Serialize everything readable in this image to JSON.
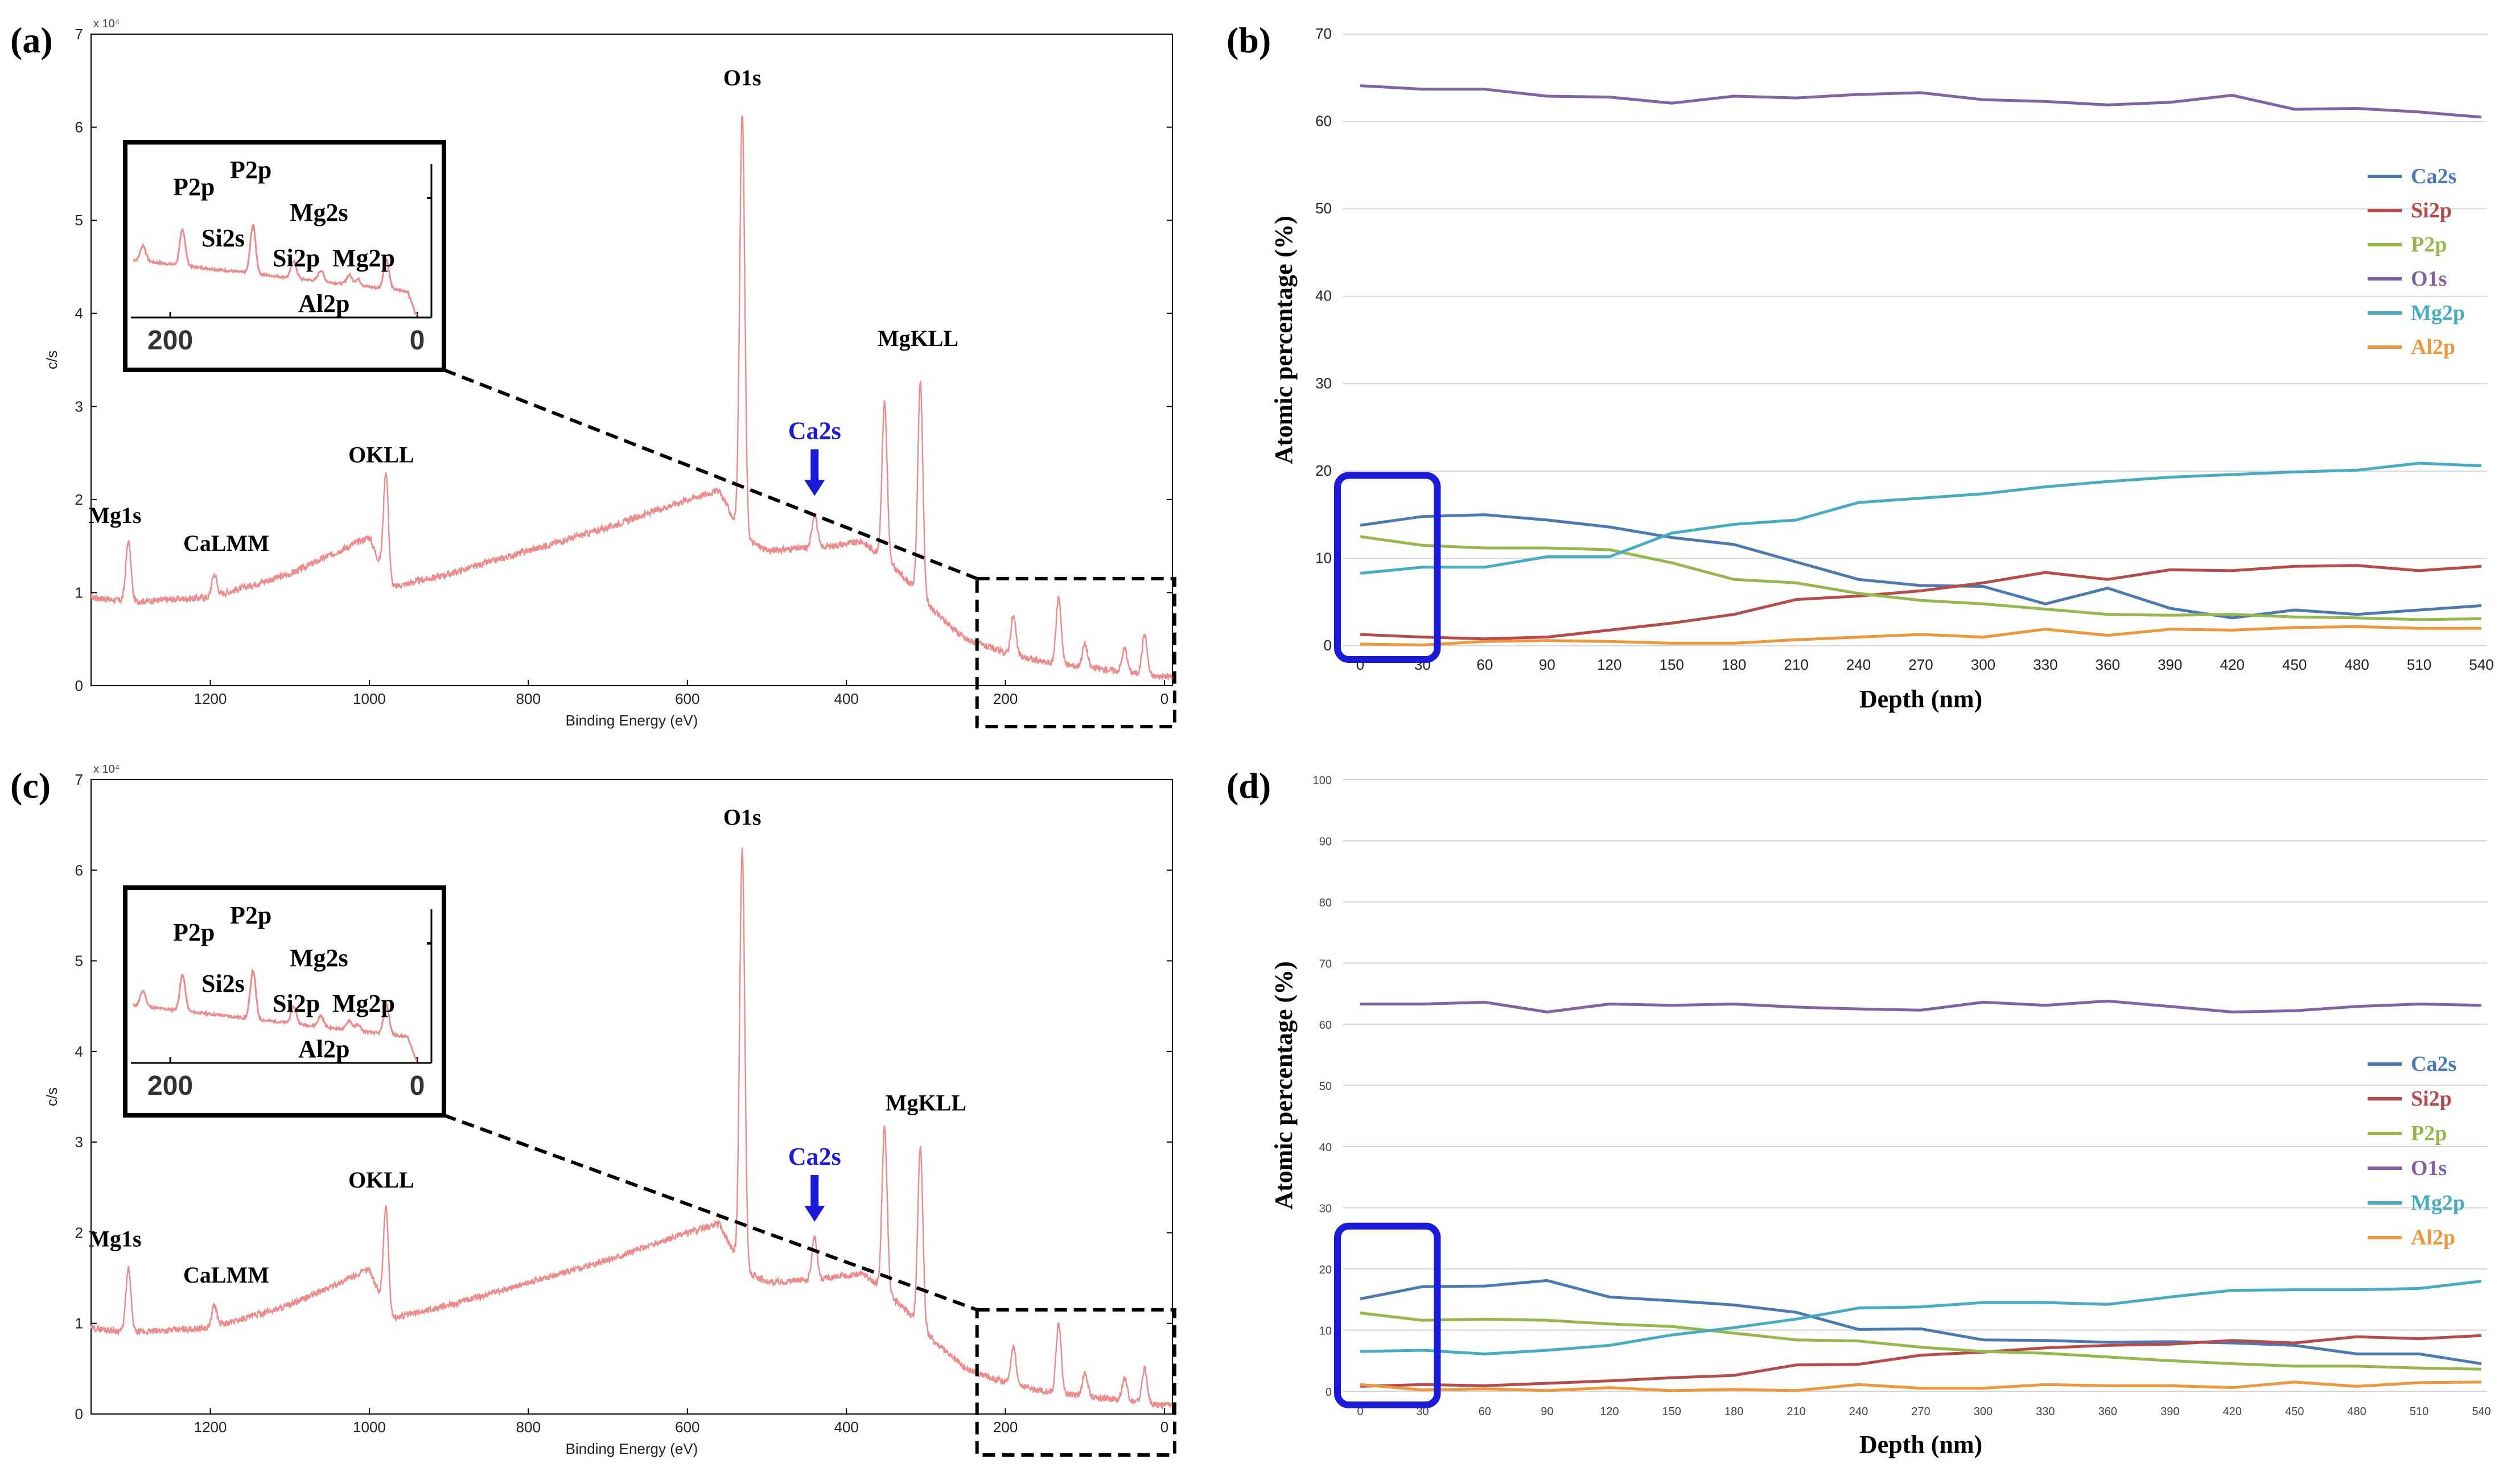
{
  "figure": {
    "panels": {
      "a": "(a)",
      "b": "(b)",
      "c": "(c)",
      "d": "(d)"
    }
  },
  "colors": {
    "spectrum": "#ef8a8a",
    "Ca2s": "#4a7ab5",
    "Si2p": "#b84a4a",
    "P2p": "#94b84a",
    "O1s": "#8062a6",
    "Mg2p": "#46acc4",
    "Al2p": "#f0973c",
    "highlight": "#1a1adb"
  },
  "chart_data": [
    {
      "id": "a",
      "type": "line",
      "title": "",
      "xlabel": "Binding Energy (eV)",
      "ylabel": "c/s",
      "y_multiplier": "x 10⁴",
      "xlim": [
        1350,
        -10
      ],
      "ylim": [
        0,
        7
      ],
      "xticks": [
        1200,
        1000,
        800,
        600,
        400,
        200,
        0
      ],
      "yticks": [
        0,
        1,
        2,
        3,
        4,
        5,
        6,
        7
      ],
      "baseline": [
        [
          1350,
          0.95
        ],
        [
          1300,
          0.9
        ],
        [
          1200,
          0.95
        ],
        [
          1100,
          1.2
        ],
        [
          1000,
          1.6
        ],
        [
          975,
          1.05
        ],
        [
          900,
          1.2
        ],
        [
          800,
          1.45
        ],
        [
          700,
          1.7
        ],
        [
          600,
          2.0
        ],
        [
          560,
          2.1
        ],
        [
          531,
          1.6
        ],
        [
          500,
          1.45
        ],
        [
          420,
          1.5
        ],
        [
          380,
          1.55
        ],
        [
          350,
          1.35
        ],
        [
          320,
          1.1
        ],
        [
          290,
          0.8
        ],
        [
          250,
          0.5
        ],
        [
          200,
          0.35
        ],
        [
          150,
          0.25
        ],
        [
          100,
          0.2
        ],
        [
          50,
          0.15
        ],
        [
          10,
          0.1
        ],
        [
          0,
          0.1
        ]
      ],
      "peaks": [
        {
          "x": 1303,
          "y": 1.55
        },
        {
          "x": 1195,
          "y": 1.2
        },
        {
          "x": 979,
          "y": 2.3
        },
        {
          "x": 531,
          "y": 6.15
        },
        {
          "x": 440,
          "y": 1.85
        },
        {
          "x": 352,
          "y": 3.05
        },
        {
          "x": 307,
          "y": 3.25
        },
        {
          "x": 190,
          "y": 0.75
        },
        {
          "x": 133,
          "y": 0.95
        },
        {
          "x": 100,
          "y": 0.45
        },
        {
          "x": 50,
          "y": 0.4
        },
        {
          "x": 25,
          "y": 0.55
        }
      ],
      "peak_labels": [
        {
          "text": "O1s",
          "x": 531,
          "y": 6.45
        },
        {
          "text": "MgKLL",
          "x": 310,
          "y": 3.65
        },
        {
          "text": "Ca2s",
          "x": 440,
          "y": 2.65,
          "highlight": true
        },
        {
          "text": "OKLL",
          "x": 985,
          "y": 2.4
        },
        {
          "text": "Mg1s",
          "x": 1320,
          "y": 1.75
        },
        {
          "text": "CaLMM",
          "x": 1180,
          "y": 1.45
        }
      ],
      "ca2s_arrow_x": 440,
      "inset": {
        "xlim": [
          230,
          -5
        ],
        "xticks": [
          200,
          0
        ],
        "labels": [
          "P2p",
          "P2p",
          "Si2s",
          "Mg2s",
          "Si2p",
          "Mg2p",
          "Al2p"
        ]
      }
    },
    {
      "id": "b",
      "type": "line",
      "title": "",
      "xlabel": "Depth (nm)",
      "ylabel": "Atomic percentage (%)",
      "categories": [
        "0",
        "30",
        "60",
        "90",
        "120",
        "150",
        "180",
        "210",
        "240",
        "270",
        "300",
        "330",
        "360",
        "390",
        "420",
        "450",
        "480",
        "510",
        "540"
      ],
      "ylim": [
        0,
        70
      ],
      "yticks": [
        0,
        10,
        20,
        30,
        40,
        50,
        60,
        70
      ],
      "series": [
        {
          "name": "Ca2s",
          "values": [
            13.8,
            14.8,
            15,
            14.4,
            13.6,
            12.4,
            11.6,
            9.6,
            7.6,
            6.9,
            6.8,
            4.8,
            6.6,
            4.3,
            3.2,
            4.1,
            3.6,
            4.1,
            4.6
          ]
        },
        {
          "name": "Si2p",
          "values": [
            1.3,
            1.0,
            0.8,
            1.0,
            1.8,
            2.6,
            3.6,
            5.3,
            5.7,
            6.3,
            7.2,
            8.4,
            7.6,
            8.7,
            8.6,
            9.1,
            9.2,
            8.6,
            9.1
          ]
        },
        {
          "name": "P2p",
          "values": [
            12.5,
            11.5,
            11.2,
            11.2,
            11.0,
            9.5,
            7.6,
            7.2,
            6.0,
            5.2,
            4.8,
            4.2,
            3.6,
            3.5,
            3.6,
            3.3,
            3.2,
            3.0,
            3.1
          ]
        },
        {
          "name": "O1s",
          "values": [
            64.1,
            63.7,
            63.7,
            62.9,
            62.8,
            62.1,
            62.9,
            62.7,
            63.1,
            63.3,
            62.5,
            62.3,
            61.9,
            62.2,
            63.0,
            61.4,
            61.5,
            61.1,
            60.5
          ]
        },
        {
          "name": "Mg2p",
          "values": [
            8.3,
            9.0,
            9.0,
            10.2,
            10.2,
            12.9,
            13.9,
            14.4,
            16.4,
            16.9,
            17.4,
            18.2,
            18.8,
            19.3,
            19.6,
            19.9,
            20.1,
            20.9,
            20.6
          ]
        },
        {
          "name": "Al2p",
          "values": [
            0.2,
            0.1,
            0.5,
            0.6,
            0.5,
            0.3,
            0.3,
            0.7,
            1.0,
            1.3,
            1.0,
            1.9,
            1.2,
            1.9,
            1.8,
            2.1,
            2.2,
            2.0,
            2.0
          ]
        }
      ],
      "legend": "right"
    },
    {
      "id": "c",
      "type": "line",
      "title": "",
      "xlabel": "Binding Energy (eV)",
      "ylabel": "c/s",
      "y_multiplier": "x 10⁴",
      "xlim": [
        1350,
        -10
      ],
      "ylim": [
        0,
        7
      ],
      "xticks": [
        1200,
        1000,
        800,
        600,
        400,
        200,
        0
      ],
      "yticks": [
        0,
        1,
        2,
        3,
        4,
        5,
        6,
        7
      ],
      "baseline": [
        [
          1350,
          0.95
        ],
        [
          1300,
          0.9
        ],
        [
          1200,
          0.95
        ],
        [
          1100,
          1.2
        ],
        [
          1000,
          1.6
        ],
        [
          975,
          1.05
        ],
        [
          900,
          1.2
        ],
        [
          800,
          1.45
        ],
        [
          700,
          1.7
        ],
        [
          600,
          2.0
        ],
        [
          560,
          2.1
        ],
        [
          531,
          1.6
        ],
        [
          500,
          1.45
        ],
        [
          420,
          1.5
        ],
        [
          380,
          1.55
        ],
        [
          350,
          1.35
        ],
        [
          320,
          1.1
        ],
        [
          290,
          0.8
        ],
        [
          250,
          0.5
        ],
        [
          200,
          0.35
        ],
        [
          150,
          0.25
        ],
        [
          100,
          0.2
        ],
        [
          50,
          0.15
        ],
        [
          10,
          0.1
        ],
        [
          0,
          0.1
        ]
      ],
      "peaks": [
        {
          "x": 1303,
          "y": 1.6
        },
        {
          "x": 1195,
          "y": 1.2
        },
        {
          "x": 979,
          "y": 2.3
        },
        {
          "x": 531,
          "y": 6.25
        },
        {
          "x": 440,
          "y": 1.95
        },
        {
          "x": 352,
          "y": 3.15
        },
        {
          "x": 307,
          "y": 2.95
        },
        {
          "x": 190,
          "y": 0.75
        },
        {
          "x": 133,
          "y": 1.0
        },
        {
          "x": 100,
          "y": 0.45
        },
        {
          "x": 50,
          "y": 0.4
        },
        {
          "x": 25,
          "y": 0.5
        }
      ],
      "peak_labels": [
        {
          "text": "O1s",
          "x": 531,
          "y": 6.5
        },
        {
          "text": "MgKLL",
          "x": 300,
          "y": 3.35
        },
        {
          "text": "Ca2s",
          "x": 440,
          "y": 2.75,
          "highlight": true
        },
        {
          "text": "OKLL",
          "x": 985,
          "y": 2.5
        },
        {
          "text": "Mg1s",
          "x": 1320,
          "y": 1.85
        },
        {
          "text": "CaLMM",
          "x": 1180,
          "y": 1.45
        }
      ],
      "ca2s_arrow_x": 440,
      "inset": {
        "xlim": [
          230,
          -5
        ],
        "xticks": [
          200,
          0
        ],
        "labels": [
          "P2p",
          "P2p",
          "Si2s",
          "Mg2s",
          "Si2p",
          "Mg2p",
          "Al2p"
        ]
      }
    },
    {
      "id": "d",
      "type": "line",
      "title": "",
      "xlabel": "Depth (nm)",
      "ylabel": "Atomic percentage (%)",
      "categories": [
        "0",
        "30",
        "60",
        "90",
        "120",
        "150",
        "180",
        "210",
        "240",
        "270",
        "300",
        "330",
        "360",
        "390",
        "420",
        "450",
        "480",
        "510",
        "540"
      ],
      "ylim": [
        0,
        100
      ],
      "yticks": [
        0,
        10,
        20,
        30,
        40,
        50,
        60,
        70,
        80,
        90,
        100
      ],
      "series": [
        {
          "name": "Ca2s",
          "values": [
            15.1,
            17.1,
            17.2,
            18.1,
            15.4,
            14.8,
            14.1,
            12.9,
            10.1,
            10.2,
            8.4,
            8.3,
            8.0,
            8.1,
            7.9,
            7.5,
            6.1,
            6.1,
            4.5
          ]
        },
        {
          "name": "Si2p",
          "values": [
            0.8,
            1.1,
            0.9,
            1.3,
            1.7,
            2.2,
            2.6,
            4.3,
            4.4,
            5.9,
            6.4,
            7.1,
            7.5,
            7.7,
            8.3,
            7.9,
            8.9,
            8.6,
            9.1
          ]
        },
        {
          "name": "P2p",
          "values": [
            12.8,
            11.6,
            11.8,
            11.6,
            11.0,
            10.6,
            9.5,
            8.4,
            8.2,
            7.2,
            6.5,
            6.2,
            5.6,
            5.0,
            4.5,
            4.1,
            4.1,
            3.8,
            3.6
          ]
        },
        {
          "name": "O1s",
          "values": [
            63.3,
            63.3,
            63.6,
            62.0,
            63.3,
            63.1,
            63.3,
            62.8,
            62.5,
            62.3,
            63.6,
            63.1,
            63.8,
            62.9,
            62.0,
            62.2,
            62.9,
            63.3,
            63.1
          ]
        },
        {
          "name": "Mg2p",
          "values": [
            6.5,
            6.7,
            6.1,
            6.7,
            7.5,
            9.2,
            10.4,
            11.8,
            13.6,
            13.8,
            14.5,
            14.5,
            14.2,
            15.4,
            16.5,
            16.6,
            16.6,
            16.8,
            18.0
          ]
        },
        {
          "name": "Al2p",
          "values": [
            1.1,
            0.2,
            0.4,
            0.1,
            0.6,
            0.1,
            0.3,
            0.1,
            1.1,
            0.5,
            0.5,
            1.1,
            0.9,
            0.9,
            0.6,
            1.5,
            0.8,
            1.4,
            1.5
          ]
        }
      ],
      "legend": "right"
    }
  ]
}
